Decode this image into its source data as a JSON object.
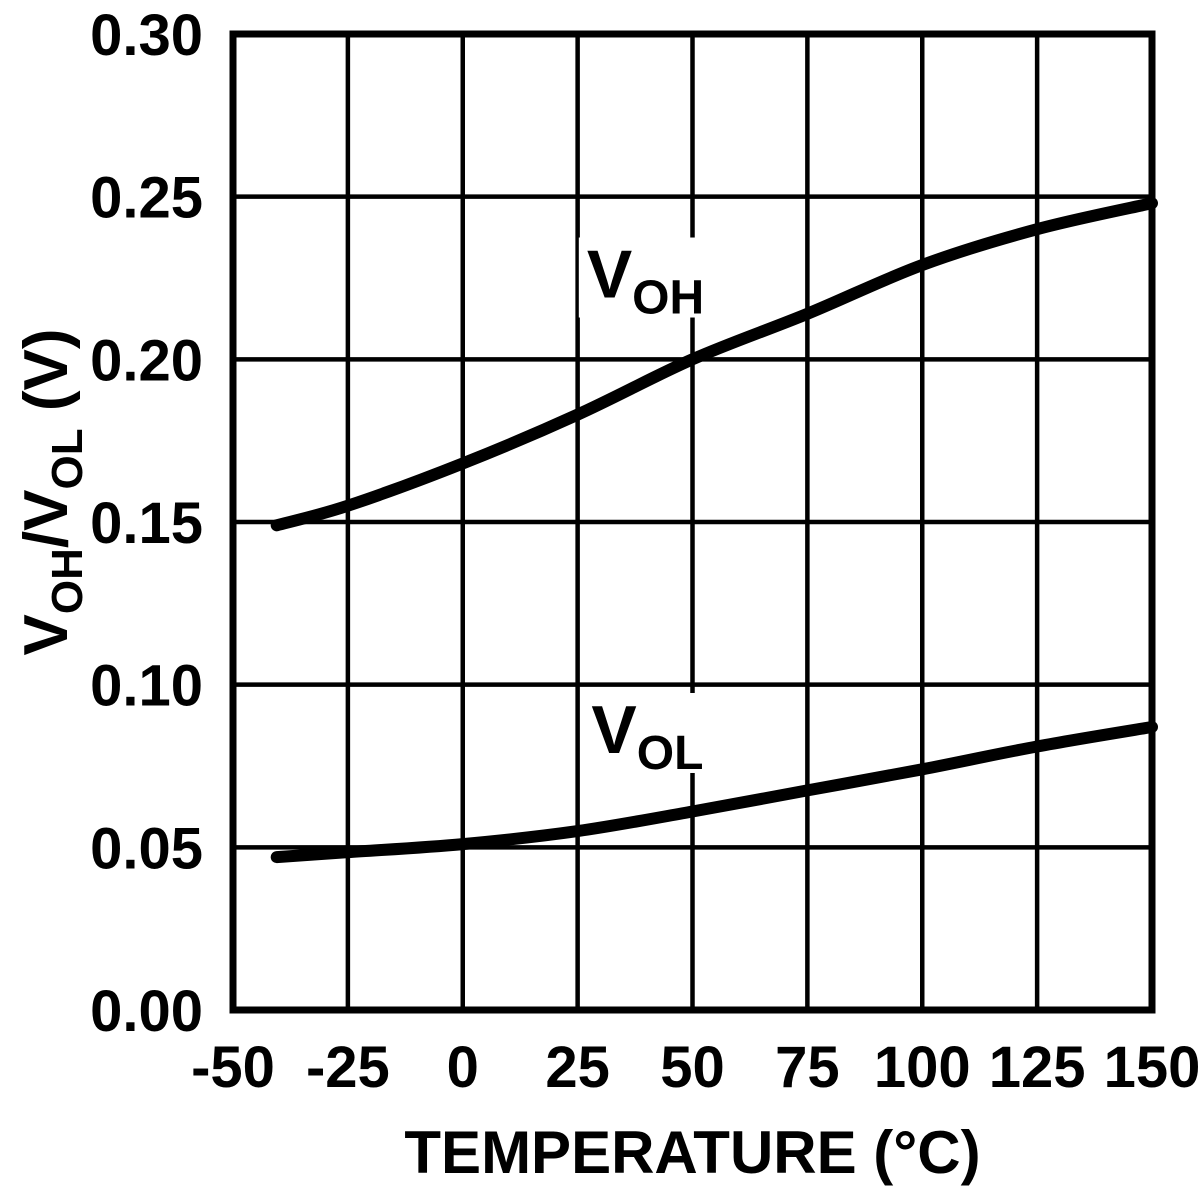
{
  "figure": {
    "background": "#ffffff",
    "text_color": "#000000"
  },
  "chart_data": {
    "type": "line",
    "title": "",
    "xlabel": "TEMPERATURE (°C)",
    "ylabel": "VOH/VOL (V)",
    "ylabel_parts": [
      {
        "text": "V",
        "sub": false
      },
      {
        "text": "OH",
        "sub": true
      },
      {
        "text": "/V",
        "sub": false
      },
      {
        "text": "OL",
        "sub": true
      },
      {
        "text": " (V)",
        "sub": false
      }
    ],
    "xlim": [
      -50,
      150
    ],
    "ylim": [
      0,
      0.3
    ],
    "x_tick_values": [
      -50,
      -25,
      0,
      25,
      50,
      75,
      100,
      125,
      150
    ],
    "x_tick_labels": [
      "-50",
      "-25",
      "0",
      "25",
      "50",
      "75",
      "100",
      "125",
      "150"
    ],
    "y_tick_values": [
      0,
      0.05,
      0.1,
      0.15,
      0.2,
      0.25,
      0.3
    ],
    "y_tick_labels": [
      "0.00",
      "0.05",
      "0.10",
      "0.15",
      "0.20",
      "0.25",
      "0.30"
    ],
    "grid": true,
    "legend_position": "inline-labels",
    "line_color": "#000000",
    "grid_color": "#000000",
    "series": [
      {
        "name": "VOH",
        "label_main": "V",
        "label_sub": "OH",
        "label_anchor": [
          27,
          0.219
        ],
        "points": [
          [
            -40.5,
            0.149
          ],
          [
            -25,
            0.155
          ],
          [
            0,
            0.168
          ],
          [
            25,
            0.183
          ],
          [
            50,
            0.2
          ],
          [
            75,
            0.214
          ],
          [
            100,
            0.229
          ],
          [
            125,
            0.24
          ],
          [
            150,
            0.248
          ]
        ]
      },
      {
        "name": "VOL",
        "label_main": "V",
        "label_sub": "OL",
        "label_anchor": [
          28,
          0.079
        ],
        "points": [
          [
            -40.5,
            0.047
          ],
          [
            -25,
            0.0485
          ],
          [
            0,
            0.051
          ],
          [
            25,
            0.055
          ],
          [
            50,
            0.061
          ],
          [
            75,
            0.0675
          ],
          [
            100,
            0.074
          ],
          [
            125,
            0.081
          ],
          [
            150,
            0.087
          ]
        ]
      }
    ]
  }
}
